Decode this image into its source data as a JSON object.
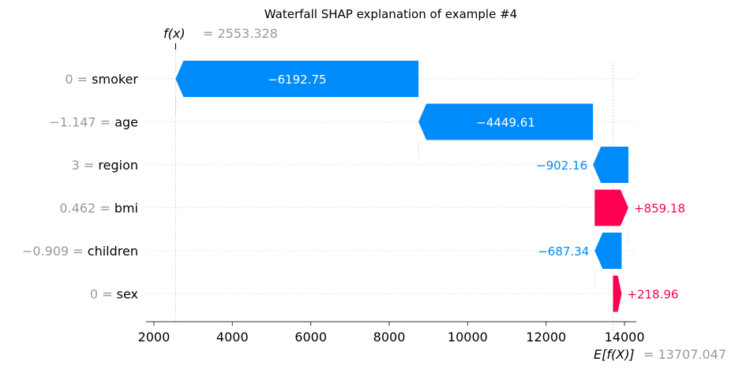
{
  "chart_data": {
    "type": "waterfall",
    "title": "Waterfall SHAP explanation of example #4",
    "fx_label": "f(x)",
    "fx_value_text": "= 2553.328",
    "fx_value": 2553.328,
    "ex_label": "E[f(X)]",
    "ex_value_text": "= 13707.047",
    "base_value": 13707.047,
    "xlim": [
      1800,
      14300
    ],
    "xticks": [
      2000,
      4000,
      6000,
      8000,
      10000,
      12000,
      14000
    ],
    "xtick_labels": [
      "2000",
      "4000",
      "6000",
      "8000",
      "10000",
      "12000",
      "14000"
    ],
    "features": [
      {
        "value_text": "0",
        "name": "smoker",
        "shap": -6192.75,
        "label": "−6192.75"
      },
      {
        "value_text": "−1.147",
        "name": "age",
        "shap": -4449.61,
        "label": "−4449.61"
      },
      {
        "value_text": "3",
        "name": "region",
        "shap": -902.16,
        "label": "−902.16"
      },
      {
        "value_text": "0.462",
        "name": "bmi",
        "shap": 859.18,
        "label": "+859.18"
      },
      {
        "value_text": "−0.909",
        "name": "children",
        "shap": -687.34,
        "label": "−687.34"
      },
      {
        "value_text": "0",
        "name": "sex",
        "shap": 218.96,
        "label": "+218.96"
      }
    ],
    "colors": {
      "positive": "#ff0051",
      "negative": "#008bfb",
      "muted": "#999999"
    }
  }
}
